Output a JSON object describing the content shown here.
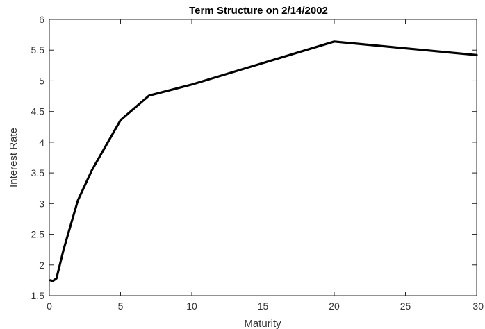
{
  "chart_data": {
    "type": "line",
    "title": "Term Structure on 2/14/2002",
    "xlabel": "Maturity",
    "ylabel": "Interest Rate",
    "xlim": [
      0,
      30
    ],
    "ylim": [
      1.5,
      6
    ],
    "xticks": [
      0,
      5,
      10,
      15,
      20,
      25,
      30
    ],
    "yticks": [
      1.5,
      2,
      2.5,
      3,
      3.5,
      4,
      4.5,
      5,
      5.5,
      6
    ],
    "grid": false,
    "series": [
      {
        "x": [
          0.08,
          0.25,
          0.5,
          1,
          2,
          3,
          5,
          7,
          10,
          20,
          30
        ],
        "values": [
          1.75,
          1.74,
          1.78,
          2.25,
          3.05,
          3.55,
          4.36,
          4.76,
          4.94,
          5.64,
          5.42
        ]
      }
    ],
    "line_color": "#000000"
  }
}
